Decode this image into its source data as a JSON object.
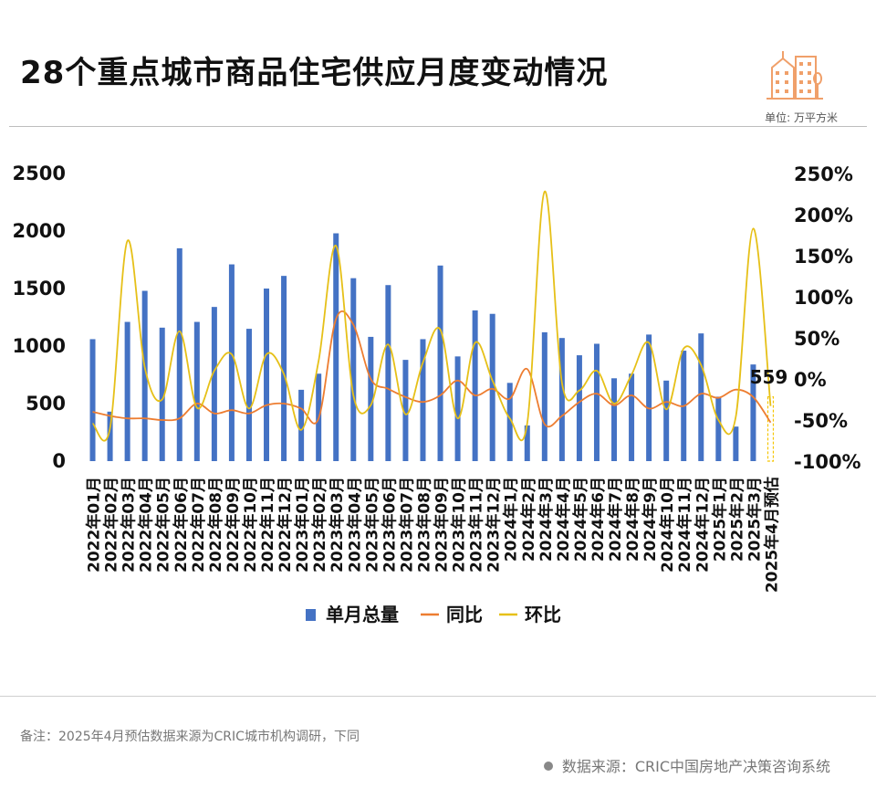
{
  "header": {
    "title": "28个重点城市商品住宅供应月度变动情况",
    "unit": "单位: 万平方米"
  },
  "footer": {
    "note": "备注：2025年4月预估数据来源为CRIC城市机构调研，下同",
    "source": "数据来源：CRIC中国房地产决策咨询系统"
  },
  "colors": {
    "bar": "#4472C4",
    "yoy": "#ED7D31",
    "mom": "#E6C018",
    "estimate_bar": "#F5C500"
  },
  "chart_data": {
    "type": "bar",
    "categories": [
      "2022年01月",
      "2022年02月",
      "2022年03月",
      "2022年04月",
      "2022年05月",
      "2022年06月",
      "2022年07月",
      "2022年08月",
      "2022年09月",
      "2022年10月",
      "2022年11月",
      "2022年12月",
      "2023年01月",
      "2023年02月",
      "2023年03月",
      "2023年04月",
      "2023年05月",
      "2023年06月",
      "2023年07月",
      "2023年08月",
      "2023年09月",
      "2023年10月",
      "2023年11月",
      "2023年12月",
      "2024年1月",
      "2024年2月",
      "2024年3月",
      "2024年4月",
      "2024年5月",
      "2024年6月",
      "2024年7月",
      "2024年8月",
      "2024年9月",
      "2024年10月",
      "2024年11月",
      "2024年12月",
      "2025年1月",
      "2025年2月",
      "2025年3月",
      "2025年4月预估"
    ],
    "series": [
      {
        "name": "单月总量",
        "axis": "left",
        "values": [
          1060,
          430,
          1210,
          1480,
          1160,
          1850,
          1210,
          1340,
          1710,
          1150,
          1500,
          1610,
          620,
          760,
          1980,
          1590,
          1080,
          1530,
          880,
          1060,
          1700,
          910,
          1310,
          1280,
          680,
          310,
          1120,
          1070,
          920,
          1020,
          720,
          760,
          1100,
          700,
          960,
          1110,
          560,
          300,
          840,
          559
        ]
      },
      {
        "name": "同比",
        "axis": "right",
        "unit": "%",
        "values": [
          -40,
          -45,
          -48,
          -48,
          -50,
          -48,
          -30,
          -42,
          -38,
          -42,
          -32,
          -30,
          -36,
          -48,
          73,
          66,
          0,
          -12,
          -22,
          -28,
          -20,
          -2,
          -20,
          -12,
          -24,
          12,
          -55,
          -45,
          -28,
          -18,
          -32,
          -20,
          -36,
          -28,
          -33,
          -18,
          -23,
          -13,
          -22,
          -53
        ]
      },
      {
        "name": "环比",
        "axis": "right",
        "unit": "%",
        "values": [
          -54,
          -60,
          168,
          14,
          -25,
          58,
          -35,
          10,
          30,
          -36,
          30,
          6,
          -62,
          22,
          162,
          -20,
          -32,
          42,
          -43,
          20,
          60,
          -48,
          44,
          -2,
          -48,
          -54,
          228,
          -5,
          -14,
          10,
          -30,
          5,
          44,
          -37,
          37,
          17,
          -50,
          -46,
          183,
          -33
        ]
      }
    ],
    "data_labels": [
      {
        "category": "2025年4月预估",
        "text": "559"
      }
    ],
    "left_axis": {
      "range": [
        0,
        2500
      ],
      "ticks": [
        "0",
        "500",
        "1000",
        "1500",
        "2000",
        "2500"
      ]
    },
    "right_axis": {
      "range": [
        -100,
        250
      ],
      "ticks": [
        "-100%",
        "-50%",
        "0%",
        "50%",
        "100%",
        "150%",
        "200%",
        "250%"
      ]
    },
    "legend": {
      "position": "bottom",
      "entries": [
        "单月总量",
        "同比",
        "环比"
      ]
    },
    "grid": false
  }
}
